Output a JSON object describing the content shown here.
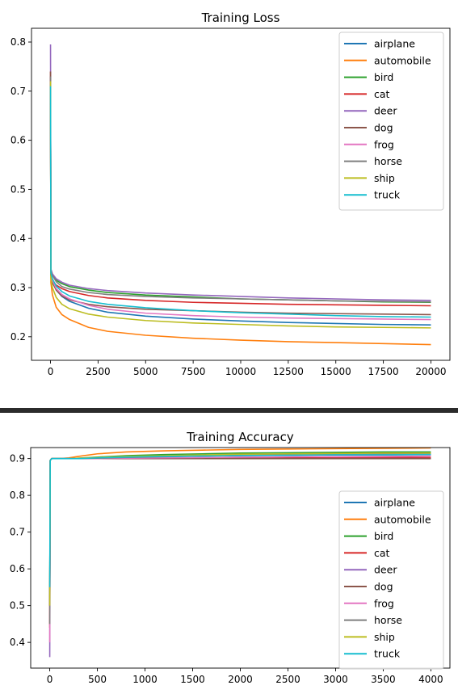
{
  "chart_data": [
    {
      "type": "line",
      "title": "Training Loss",
      "xlabel": "",
      "ylabel": "",
      "xlim": [
        -1000,
        21000
      ],
      "ylim": [
        0.152,
        0.828
      ],
      "xticks": [
        0,
        2500,
        5000,
        7500,
        10000,
        12500,
        15000,
        17500,
        20000
      ],
      "xtick_labels": [
        "0",
        "2500",
        "5000",
        "7500",
        "10000",
        "12500",
        "15000",
        "17500",
        "20000"
      ],
      "yticks": [
        0.2,
        0.3,
        0.4,
        0.5,
        0.6,
        0.7,
        0.8
      ],
      "ytick_labels": [
        "0.2",
        "0.3",
        "0.4",
        "0.5",
        "0.6",
        "0.7",
        "0.8"
      ],
      "grid": false,
      "legend": "top-right",
      "x": [
        0,
        20,
        100,
        300,
        600,
        1000,
        2000,
        3000,
        5000,
        7500,
        10000,
        12500,
        15000,
        17500,
        20000
      ],
      "series": [
        {
          "name": "airplane",
          "color": "#1f77b4",
          "values": [
            0.72,
            0.33,
            0.315,
            0.295,
            0.282,
            0.272,
            0.258,
            0.25,
            0.242,
            0.236,
            0.232,
            0.229,
            0.227,
            0.225,
            0.224
          ]
        },
        {
          "name": "automobile",
          "color": "#ff7f0e",
          "values": [
            0.74,
            0.31,
            0.285,
            0.26,
            0.245,
            0.235,
            0.219,
            0.211,
            0.203,
            0.197,
            0.193,
            0.19,
            0.188,
            0.186,
            0.184
          ]
        },
        {
          "name": "bird",
          "color": "#2ca02c",
          "values": [
            0.72,
            0.335,
            0.325,
            0.315,
            0.308,
            0.302,
            0.295,
            0.29,
            0.285,
            0.281,
            0.277,
            0.275,
            0.273,
            0.271,
            0.27
          ]
        },
        {
          "name": "cat",
          "color": "#d62728",
          "values": [
            0.73,
            0.325,
            0.315,
            0.305,
            0.298,
            0.292,
            0.284,
            0.279,
            0.274,
            0.27,
            0.268,
            0.266,
            0.265,
            0.264,
            0.263
          ]
        },
        {
          "name": "deer",
          "color": "#9467bd",
          "values": [
            0.795,
            0.338,
            0.328,
            0.318,
            0.311,
            0.305,
            0.298,
            0.294,
            0.289,
            0.285,
            0.282,
            0.279,
            0.277,
            0.275,
            0.274
          ]
        },
        {
          "name": "dog",
          "color": "#8c564b",
          "values": [
            0.74,
            0.325,
            0.31,
            0.295,
            0.283,
            0.275,
            0.266,
            0.261,
            0.256,
            0.253,
            0.25,
            0.248,
            0.247,
            0.246,
            0.245
          ]
        },
        {
          "name": "frog",
          "color": "#e377c2",
          "values": [
            0.72,
            0.33,
            0.315,
            0.298,
            0.286,
            0.277,
            0.264,
            0.256,
            0.248,
            0.243,
            0.24,
            0.238,
            0.237,
            0.236,
            0.235
          ]
        },
        {
          "name": "horse",
          "color": "#7f7f7f",
          "values": [
            0.73,
            0.335,
            0.325,
            0.312,
            0.302,
            0.297,
            0.29,
            0.286,
            0.282,
            0.279,
            0.277,
            0.275,
            0.273,
            0.272,
            0.271
          ]
        },
        {
          "name": "ship",
          "color": "#bcbd22",
          "values": [
            0.72,
            0.32,
            0.3,
            0.28,
            0.266,
            0.257,
            0.246,
            0.24,
            0.233,
            0.228,
            0.225,
            0.222,
            0.22,
            0.219,
            0.218
          ]
        },
        {
          "name": "truck",
          "color": "#17becf",
          "values": [
            0.71,
            0.33,
            0.318,
            0.303,
            0.292,
            0.283,
            0.272,
            0.266,
            0.259,
            0.253,
            0.249,
            0.246,
            0.243,
            0.241,
            0.24
          ]
        }
      ]
    },
    {
      "type": "line",
      "title": "Training Accuracy",
      "xlabel": "",
      "ylabel": "",
      "xlim": [
        -200,
        4200
      ],
      "ylim": [
        0.33,
        0.93
      ],
      "xticks": [
        0,
        500,
        1000,
        1500,
        2000,
        2500,
        3000,
        3500,
        4000
      ],
      "xtick_labels": [
        "0",
        "500",
        "1000",
        "1500",
        "2000",
        "2500",
        "3000",
        "3500",
        "4000"
      ],
      "yticks": [
        0.4,
        0.5,
        0.6,
        0.7,
        0.8,
        0.9
      ],
      "ytick_labels": [
        "0.4",
        "0.5",
        "0.6",
        "0.7",
        "0.8",
        "0.9"
      ],
      "grid": false,
      "legend": "center-right",
      "x": [
        0,
        5,
        20,
        100,
        200,
        300,
        500,
        800,
        1200,
        1600,
        2000,
        2500,
        3000,
        3500,
        4000
      ],
      "series": [
        {
          "name": "airplane",
          "color": "#1f77b4",
          "values": [
            0.5,
            0.895,
            0.9,
            0.9,
            0.9,
            0.9,
            0.901,
            0.903,
            0.905,
            0.907,
            0.908,
            0.909,
            0.91,
            0.91,
            0.911
          ]
        },
        {
          "name": "automobile",
          "color": "#ff7f0e",
          "values": [
            0.44,
            0.895,
            0.9,
            0.9,
            0.902,
            0.906,
            0.913,
            0.918,
            0.921,
            0.923,
            0.925,
            0.926,
            0.927,
            0.928,
            0.929
          ]
        },
        {
          "name": "bird",
          "color": "#2ca02c",
          "values": [
            0.5,
            0.895,
            0.9,
            0.9,
            0.9,
            0.901,
            0.904,
            0.908,
            0.911,
            0.913,
            0.915,
            0.916,
            0.917,
            0.918,
            0.918
          ]
        },
        {
          "name": "cat",
          "color": "#d62728",
          "values": [
            0.45,
            0.895,
            0.9,
            0.9,
            0.9,
            0.9,
            0.9,
            0.9,
            0.9,
            0.901,
            0.901,
            0.902,
            0.902,
            0.903,
            0.903
          ]
        },
        {
          "name": "deer",
          "color": "#9467bd",
          "values": [
            0.36,
            0.895,
            0.9,
            0.9,
            0.9,
            0.9,
            0.9,
            0.9,
            0.9,
            0.9,
            0.9,
            0.9,
            0.9,
            0.9,
            0.9
          ]
        },
        {
          "name": "dog",
          "color": "#8c564b",
          "values": [
            0.5,
            0.895,
            0.9,
            0.9,
            0.9,
            0.9,
            0.9,
            0.9,
            0.9,
            0.9,
            0.9,
            0.9,
            0.9,
            0.9,
            0.9
          ]
        },
        {
          "name": "frog",
          "color": "#e377c2",
          "values": [
            0.4,
            0.895,
            0.9,
            0.9,
            0.9,
            0.9,
            0.9,
            0.901,
            0.902,
            0.903,
            0.904,
            0.905,
            0.906,
            0.906,
            0.907
          ]
        },
        {
          "name": "horse",
          "color": "#7f7f7f",
          "values": [
            0.45,
            0.895,
            0.9,
            0.9,
            0.9,
            0.9,
            0.901,
            0.903,
            0.905,
            0.907,
            0.909,
            0.91,
            0.911,
            0.912,
            0.913
          ]
        },
        {
          "name": "ship",
          "color": "#bcbd22",
          "values": [
            0.5,
            0.895,
            0.9,
            0.9,
            0.9,
            0.901,
            0.903,
            0.906,
            0.908,
            0.91,
            0.912,
            0.913,
            0.914,
            0.915,
            0.915
          ]
        },
        {
          "name": "truck",
          "color": "#17becf",
          "values": [
            0.55,
            0.895,
            0.9,
            0.9,
            0.9,
            0.9,
            0.902,
            0.904,
            0.906,
            0.907,
            0.908,
            0.909,
            0.91,
            0.91,
            0.911
          ]
        }
      ]
    }
  ]
}
